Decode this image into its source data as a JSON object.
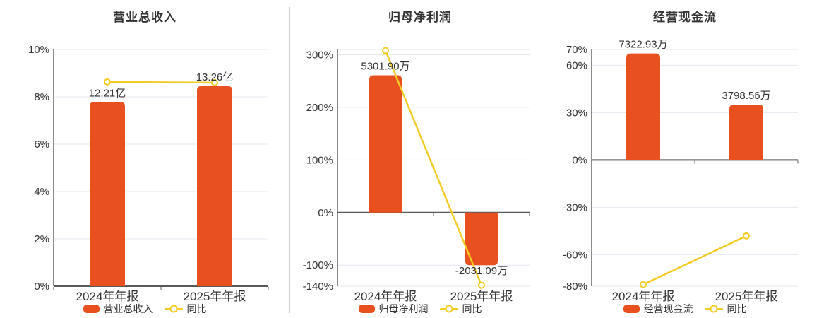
{
  "page": {
    "background": "#ffffff"
  },
  "colors": {
    "bar": "#e8511f",
    "line": "#f2cb24",
    "grid": "#e4e8f0",
    "zero_axis": "#595959",
    "axis_line": "#666666",
    "text": "#333333",
    "divider": "#cccccc",
    "marker_fill": "#ffffff"
  },
  "chart_data": [
    {
      "type": "bar",
      "title": "营业总收入",
      "categories": [
        "2024年年报",
        "2025年年报"
      ],
      "series": [
        {
          "name": "营业总收入",
          "type": "bar",
          "values": [
            12.21,
            13.26
          ],
          "unit": "亿",
          "labels": [
            "12.21亿",
            "13.26亿"
          ]
        },
        {
          "name": "同比",
          "type": "line",
          "values": [
            8.63,
            8.6
          ],
          "unit": "%"
        }
      ],
      "xlabel": "",
      "ylabel": "",
      "yticks": [
        0,
        2,
        4,
        6,
        8,
        10
      ],
      "ylim": [
        0,
        10
      ],
      "ytick_suffix": "%",
      "grid": true,
      "legend_position": "bottom",
      "bar_peak_axis": 8.45
    },
    {
      "type": "bar",
      "title": "归母净利润",
      "categories": [
        "2024年年报",
        "2025年年报"
      ],
      "series": [
        {
          "name": "归母净利润",
          "type": "bar",
          "values": [
            5301.9,
            -2031.09
          ],
          "unit": "万",
          "labels": [
            "5301.90万",
            "-2031.09万"
          ]
        },
        {
          "name": "同比",
          "type": "line",
          "values": [
            308,
            -138.31
          ],
          "unit": "%"
        }
      ],
      "xlabel": "",
      "ylabel": "",
      "yticks": [
        300,
        200,
        100,
        0,
        -100,
        -140
      ],
      "ylim": [
        -140,
        310
      ],
      "ytick_suffix": "%",
      "grid": true,
      "legend_position": "bottom",
      "bar_peak_axis": 261
    },
    {
      "type": "bar",
      "title": "经营现金流",
      "categories": [
        "2024年年报",
        "2025年年报"
      ],
      "series": [
        {
          "name": "经营现金流",
          "type": "bar",
          "values": [
            7322.93,
            3798.56
          ],
          "unit": "万",
          "labels": [
            "7322.93万",
            "3798.56万"
          ]
        },
        {
          "name": "同比",
          "type": "line",
          "values": [
            -79,
            -48.13
          ],
          "unit": "%"
        }
      ],
      "xlabel": "",
      "ylabel": "",
      "yticks": [
        70,
        60,
        30,
        0,
        -30,
        -60,
        -80
      ],
      "ylim": [
        -80,
        70
      ],
      "ytick_suffix": "%",
      "grid": true,
      "legend_position": "bottom",
      "bar_peak_axis": 67.5
    }
  ]
}
